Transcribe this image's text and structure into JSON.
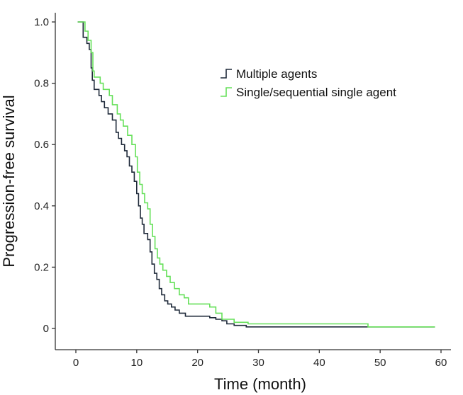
{
  "chart_data": {
    "type": "line",
    "step": true,
    "xlabel": "Time (month)",
    "ylabel": "Progression-free survival",
    "xlim": [
      0,
      60
    ],
    "ylim": [
      0,
      1.0
    ],
    "x_ticks": [
      0,
      10,
      20,
      30,
      40,
      50,
      60
    ],
    "x_tick_labels": [
      "0",
      "10",
      "20",
      "30",
      "40",
      "50",
      "60"
    ],
    "y_ticks": [
      0,
      0.2,
      0.4,
      0.6,
      0.8,
      1.0
    ],
    "y_tick_labels": [
      "0",
      "0.2",
      "0.4",
      "0.6",
      "0.8",
      "1.0"
    ],
    "grid": false,
    "legend_position": "top-right",
    "series": [
      {
        "name": "Multiple agents",
        "color": "#1f2a3a",
        "points": [
          [
            0.3,
            1.0
          ],
          [
            1.2,
            0.95
          ],
          [
            1.8,
            0.93
          ],
          [
            2.2,
            0.91
          ],
          [
            2.5,
            0.85
          ],
          [
            2.7,
            0.81
          ],
          [
            3.0,
            0.78
          ],
          [
            3.8,
            0.76
          ],
          [
            4.2,
            0.74
          ],
          [
            4.7,
            0.72
          ],
          [
            5.3,
            0.7
          ],
          [
            6.0,
            0.68
          ],
          [
            6.6,
            0.64
          ],
          [
            7.0,
            0.62
          ],
          [
            7.5,
            0.6
          ],
          [
            8.0,
            0.58
          ],
          [
            8.4,
            0.56
          ],
          [
            8.8,
            0.53
          ],
          [
            9.2,
            0.51
          ],
          [
            9.6,
            0.48
          ],
          [
            10.0,
            0.44
          ],
          [
            10.3,
            0.4
          ],
          [
            10.6,
            0.36
          ],
          [
            10.9,
            0.34
          ],
          [
            11.2,
            0.31
          ],
          [
            11.8,
            0.29
          ],
          [
            12.2,
            0.25
          ],
          [
            12.5,
            0.21
          ],
          [
            12.9,
            0.18
          ],
          [
            13.3,
            0.16
          ],
          [
            13.7,
            0.13
          ],
          [
            14.1,
            0.11
          ],
          [
            14.6,
            0.09
          ],
          [
            15.1,
            0.08
          ],
          [
            15.7,
            0.07
          ],
          [
            16.3,
            0.06
          ],
          [
            17.0,
            0.05
          ],
          [
            18.0,
            0.04
          ],
          [
            22.0,
            0.035
          ],
          [
            23.0,
            0.03
          ],
          [
            24.0,
            0.025
          ],
          [
            24.8,
            0.015
          ],
          [
            26.0,
            0.01
          ],
          [
            28.0,
            0.005
          ],
          [
            59.0,
            0.005
          ]
        ]
      },
      {
        "name": "Single/sequential single agent",
        "color": "#66e05a",
        "points": [
          [
            0.3,
            1.0
          ],
          [
            1.5,
            0.97
          ],
          [
            2.0,
            0.94
          ],
          [
            2.5,
            0.9
          ],
          [
            2.8,
            0.84
          ],
          [
            3.0,
            0.82
          ],
          [
            4.0,
            0.8
          ],
          [
            4.5,
            0.78
          ],
          [
            5.5,
            0.76
          ],
          [
            6.0,
            0.73
          ],
          [
            6.8,
            0.7
          ],
          [
            7.3,
            0.68
          ],
          [
            7.8,
            0.66
          ],
          [
            8.5,
            0.63
          ],
          [
            9.2,
            0.6
          ],
          [
            9.8,
            0.56
          ],
          [
            10.1,
            0.51
          ],
          [
            10.5,
            0.47
          ],
          [
            10.9,
            0.44
          ],
          [
            11.3,
            0.41
          ],
          [
            11.8,
            0.39
          ],
          [
            12.2,
            0.34
          ],
          [
            12.6,
            0.3
          ],
          [
            13.0,
            0.26
          ],
          [
            13.4,
            0.23
          ],
          [
            13.8,
            0.21
          ],
          [
            14.3,
            0.19
          ],
          [
            14.9,
            0.17
          ],
          [
            15.5,
            0.15
          ],
          [
            16.2,
            0.13
          ],
          [
            17.0,
            0.11
          ],
          [
            17.8,
            0.1
          ],
          [
            18.5,
            0.08
          ],
          [
            22.0,
            0.07
          ],
          [
            23.0,
            0.05
          ],
          [
            24.0,
            0.03
          ],
          [
            26.0,
            0.02
          ],
          [
            28.3,
            0.015
          ],
          [
            48.0,
            0.005
          ],
          [
            59.0,
            0.005
          ]
        ]
      }
    ]
  }
}
